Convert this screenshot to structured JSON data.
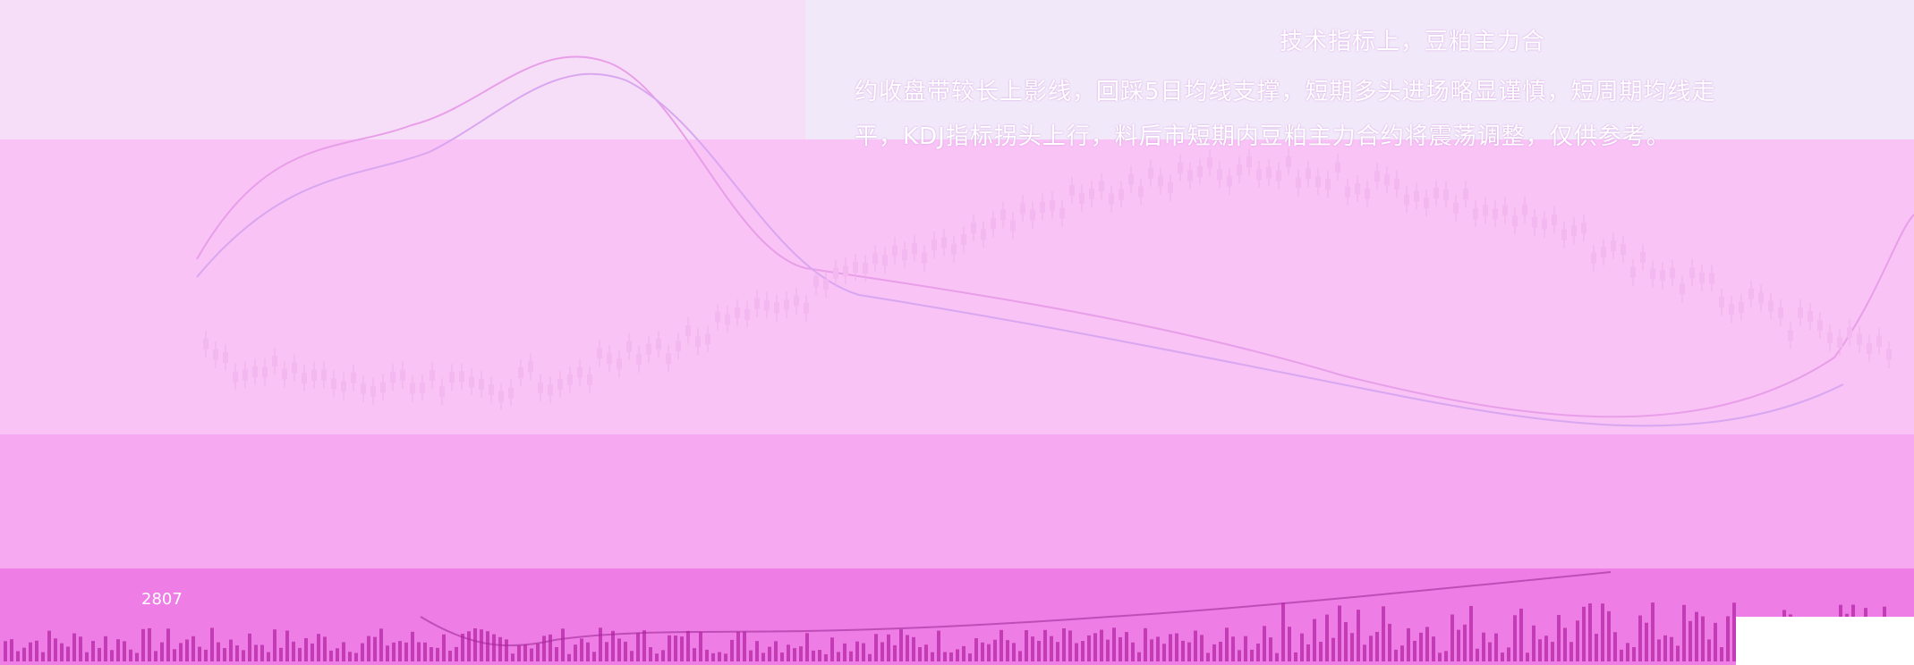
{
  "commentary": {
    "lines": [
      "技术指标上，豆粕主力合",
      "约收盘带较长上影线，回踩5日均线支撑，短期多头进场略显谨慎，短周期均线走",
      "平，KDJ指标拐头上行，料后市短期内豆粕主力合约将震荡调整，仅供参考。"
    ]
  },
  "volume_axis_label": "2807"
}
